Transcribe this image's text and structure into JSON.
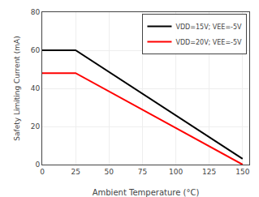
{
  "chart_data": {
    "type": "line",
    "x": [
      0,
      25,
      150
    ],
    "series": [
      {
        "name": "VDD=15V; VEE=-5V",
        "color": "#000000",
        "values": [
          60,
          60,
          3
        ]
      },
      {
        "name": "VDD=20V; VEE=-5V",
        "color": "#ff0000",
        "values": [
          48,
          48,
          0
        ]
      }
    ],
    "xlabel": "Ambient Temperature (°C)",
    "ylabel": "Safety Limiting Current (mA)",
    "xlim": [
      0,
      155
    ],
    "ylim": [
      0,
      80
    ],
    "xticks": [
      0,
      25,
      50,
      75,
      100,
      125,
      150
    ],
    "yticks": [
      0,
      20,
      40,
      60,
      80
    ],
    "grid": true,
    "legend": "upper right"
  }
}
